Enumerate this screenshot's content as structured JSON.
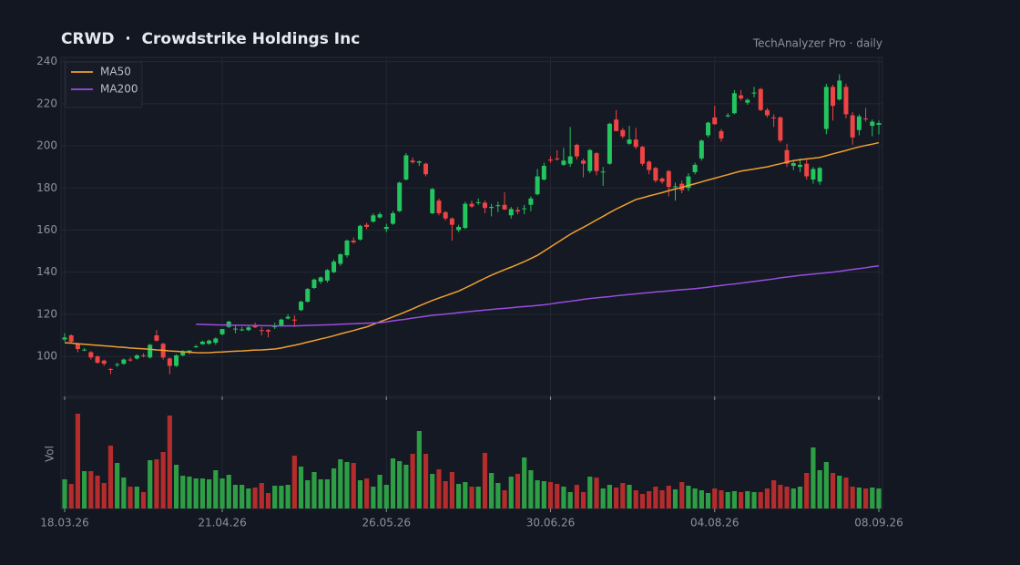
{
  "chart_data": {
    "type": "candlestick",
    "title": "CRWD  ·  Crowdstrike Holdings Inc",
    "subtitle": "TechAnalyzer Pro · daily",
    "volume_label": "Vol",
    "x": [
      "18.03.26",
      "19.03.26",
      "20.03.26",
      "23.03.26",
      "24.03.26",
      "25.03.26",
      "26.03.26",
      "27.03.26",
      "30.03.26",
      "31.03.26",
      "01.04.26",
      "02.04.26",
      "03.04.26",
      "06.04.26",
      "07.04.26",
      "08.04.26",
      "09.04.26",
      "10.04.26",
      "13.04.26",
      "14.04.26",
      "15.04.26",
      "16.04.26",
      "17.04.26",
      "20.04.26",
      "21.04.26",
      "22.04.26",
      "23.04.26",
      "24.04.26",
      "27.04.26",
      "28.04.26",
      "29.04.26",
      "30.04.26",
      "01.05.26",
      "04.05.26",
      "05.05.26",
      "06.05.26",
      "07.05.26",
      "08.05.26",
      "11.05.26",
      "12.05.26",
      "13.05.26",
      "14.05.26",
      "15.05.26",
      "18.05.26",
      "19.05.26",
      "20.05.26",
      "21.05.26",
      "22.05.26",
      "25.05.26",
      "26.05.26",
      "27.05.26",
      "28.05.26",
      "29.05.26",
      "01.06.26",
      "02.06.26",
      "03.06.26",
      "04.06.26",
      "05.06.26",
      "08.06.26",
      "09.06.26",
      "10.06.26",
      "11.06.26",
      "12.06.26",
      "15.06.26",
      "16.06.26",
      "17.06.26",
      "18.06.26",
      "19.06.26",
      "22.06.26",
      "23.06.26",
      "24.06.26",
      "25.06.26",
      "26.06.26",
      "29.06.26",
      "30.06.26",
      "01.07.26",
      "02.07.26",
      "03.07.26",
      "06.07.26",
      "07.07.26",
      "08.07.26",
      "09.07.26",
      "10.07.26",
      "13.07.26",
      "14.07.26",
      "15.07.26",
      "16.07.26",
      "17.07.26",
      "20.07.26",
      "21.07.26",
      "22.07.26",
      "23.07.26",
      "24.07.26",
      "27.07.26",
      "28.07.26",
      "29.07.26",
      "30.07.26",
      "31.07.26",
      "03.08.26",
      "04.08.26",
      "05.08.26",
      "06.08.26",
      "07.08.26",
      "10.08.26",
      "11.08.26",
      "12.08.26",
      "13.08.26",
      "14.08.26",
      "17.08.26",
      "18.08.26",
      "19.08.26",
      "20.08.26",
      "21.08.26",
      "24.08.26",
      "25.08.26",
      "26.08.26",
      "27.08.26",
      "28.08.26",
      "31.08.26",
      "01.09.26",
      "02.09.26",
      "03.09.26",
      "04.09.26",
      "07.09.26",
      "08.09.26"
    ],
    "open": [
      108,
      110,
      106,
      103,
      102,
      100,
      98,
      94,
      96,
      96.5,
      98.5,
      99,
      100.5,
      99.5,
      110,
      106,
      99,
      95.5,
      100.5,
      102,
      104.5,
      105.8,
      106,
      106.5,
      110.5,
      114,
      113,
      112.5,
      112.5,
      114.5,
      112.5,
      112.5,
      114,
      114.5,
      118,
      117.5,
      122,
      126,
      132.5,
      135.5,
      136,
      140,
      144,
      148,
      155,
      155.5,
      162.5,
      164,
      166,
      160.5,
      163,
      169,
      184,
      193,
      192,
      191.5,
      168,
      174,
      168.5,
      165.5,
      160,
      161,
      172.5,
      173,
      173,
      170.5,
      171.5,
      172,
      167,
      169.5,
      170,
      172,
      177,
      184,
      193.5,
      194,
      191,
      191.5,
      200.5,
      193,
      188,
      196.5,
      187.5,
      191.5,
      212.5,
      207.5,
      201,
      203,
      199.5,
      192.5,
      189.5,
      184.5,
      188,
      180.5,
      182,
      180,
      187.5,
      194,
      205,
      213.5,
      207,
      214,
      215.5,
      224,
      220.5,
      225,
      227,
      217,
      213.5,
      213.5,
      198,
      190.5,
      190,
      191.5,
      184,
      183,
      208,
      228,
      222,
      228,
      214.5,
      207.5,
      213,
      209.5,
      210
    ],
    "high": [
      111,
      110.5,
      106.5,
      104,
      102.5,
      100.5,
      98.5,
      94.5,
      97,
      99,
      99.5,
      101,
      101.5,
      106,
      112.5,
      106.5,
      99.5,
      101,
      103,
      103,
      105.5,
      107.5,
      108,
      109,
      113,
      117,
      115,
      114,
      115,
      116,
      114,
      113,
      116,
      118,
      120,
      119.5,
      126.5,
      132.5,
      137,
      138,
      141.5,
      146,
      149,
      155.5,
      156.5,
      162.5,
      163.5,
      168,
      168.5,
      163,
      169,
      183,
      196.5,
      194.5,
      193,
      192,
      180,
      175,
      169,
      166,
      162.5,
      173.5,
      174,
      175,
      174,
      172.5,
      173.5,
      178,
      171,
      171,
      172,
      176,
      189,
      192,
      195,
      198,
      199,
      209,
      201,
      194,
      198.5,
      197,
      190,
      211,
      217,
      208.5,
      209.5,
      208.5,
      200,
      193,
      190,
      185,
      188.5,
      182.5,
      183.5,
      187,
      192,
      203,
      211.5,
      219,
      208,
      215.5,
      226.5,
      226.5,
      222.5,
      228,
      227.5,
      218,
      215,
      214,
      201,
      193,
      194,
      194,
      190,
      190,
      229.5,
      229,
      234,
      229.5,
      216,
      215,
      218,
      212.5,
      212
    ],
    "low": [
      107,
      106.5,
      102,
      102.5,
      98.5,
      96.5,
      95.5,
      91.5,
      95,
      96,
      97.5,
      98.5,
      99.5,
      99,
      107,
      98.5,
      91.5,
      95,
      100,
      101,
      104,
      105.5,
      105.5,
      105.5,
      110,
      113.5,
      111,
      112,
      112,
      113.5,
      110,
      109,
      113,
      114,
      117.5,
      114,
      121.5,
      125.5,
      132,
      134.5,
      135,
      139.5,
      143,
      147,
      153.5,
      155,
      160.5,
      163.5,
      165.5,
      159,
      162.5,
      168.5,
      183.5,
      191.5,
      190.5,
      185.5,
      167.5,
      167,
      164.5,
      155,
      159,
      160.5,
      170.5,
      172,
      168,
      166.5,
      168.5,
      169.5,
      165.5,
      167.5,
      167.5,
      169,
      176.5,
      183.5,
      192,
      193,
      190.5,
      190,
      193.5,
      185,
      187,
      186,
      181,
      191,
      207.5,
      203.5,
      200.5,
      198.5,
      190.5,
      186.5,
      182.5,
      182,
      176,
      174,
      177.5,
      178.5,
      186.5,
      193,
      204,
      210,
      202,
      213.5,
      215,
      221.5,
      219.5,
      223,
      216.5,
      213.5,
      209,
      201.5,
      190,
      188.5,
      187.5,
      184,
      182,
      181.5,
      205.5,
      212,
      221.5,
      213,
      200.5,
      205,
      211.5,
      204.5,
      205.5
    ],
    "close": [
      109,
      107,
      103.5,
      103.2,
      99.5,
      97,
      96.5,
      93.8,
      96.3,
      98.5,
      98.2,
      100.5,
      100.2,
      105.5,
      107.5,
      99.5,
      95.5,
      100.5,
      102,
      102.8,
      104.8,
      107,
      107.5,
      108.5,
      113,
      116.5,
      113.2,
      112.8,
      113.8,
      113.8,
      112.2,
      111.8,
      114.3,
      117.5,
      118.8,
      117,
      126,
      132,
      136.5,
      137.5,
      141,
      145,
      148.5,
      155,
      154.2,
      162,
      161.5,
      167,
      167.5,
      161.5,
      168,
      182.5,
      195.5,
      192.2,
      192.6,
      186.5,
      179.5,
      168,
      165.5,
      162.5,
      161.5,
      172.5,
      171.2,
      173.2,
      170.5,
      171,
      171.8,
      169.8,
      170,
      168.8,
      170.3,
      175,
      185.5,
      190.5,
      193,
      193.6,
      193,
      195,
      195,
      191.5,
      198,
      188,
      187.8,
      210.5,
      207,
      204.5,
      203,
      199.5,
      191.5,
      188.5,
      183.5,
      183,
      180.5,
      180.8,
      179,
      185.5,
      191,
      202.5,
      211,
      210.3,
      203.5,
      214.5,
      225,
      222.5,
      221.8,
      225.3,
      217,
      214.5,
      213.2,
      202.5,
      191.5,
      191.8,
      191,
      185.5,
      189,
      189.5,
      228,
      219,
      231,
      215,
      204,
      214,
      212.8,
      211.5,
      210.8
    ],
    "volume": [
      32,
      27,
      104,
      41,
      41,
      36,
      28,
      69,
      50,
      34,
      24,
      24,
      18,
      53,
      54,
      62,
      102,
      48,
      36,
      35,
      33,
      33,
      32,
      42,
      33,
      37,
      26,
      26,
      22,
      23,
      28,
      17,
      25,
      25,
      26,
      58,
      46,
      31,
      40,
      32,
      32,
      44,
      54,
      51,
      50,
      31,
      33,
      24,
      37,
      26,
      55,
      52,
      48,
      60,
      85,
      60,
      38,
      43,
      30,
      40,
      27,
      29,
      24,
      24,
      61,
      39,
      28,
      20,
      35,
      38,
      56,
      42,
      31,
      30,
      29,
      27,
      24,
      18,
      26,
      18,
      35,
      34,
      22,
      26,
      23,
      28,
      26,
      20,
      16,
      19,
      24,
      20,
      25,
      21,
      29,
      25,
      22,
      20,
      17,
      22,
      20,
      18,
      19,
      18,
      19,
      18,
      18,
      22,
      31,
      26,
      24,
      22,
      24,
      39,
      67,
      42,
      51,
      39,
      36,
      34,
      24,
      23,
      22,
      23,
      22
    ],
    "series": [
      {
        "name": "MA50",
        "color": "#f0a030",
        "values": [
          106.5,
          106.3,
          106,
          105.8,
          105.5,
          105.3,
          105,
          104.8,
          104.5,
          104.3,
          104,
          103.8,
          103.6,
          103.4,
          103.1,
          102.9,
          102.6,
          102.4,
          102.2,
          102,
          101.8,
          101.7,
          101.8,
          102,
          102.1,
          102.3,
          102.5,
          102.6,
          102.8,
          103,
          103.1,
          103.3,
          103.5,
          104,
          104.7,
          105.3,
          106,
          106.8,
          107.5,
          108.3,
          109,
          109.8,
          110.7,
          111.5,
          112.3,
          113.2,
          114,
          115.2,
          116.4,
          117.6,
          118.8,
          120,
          121.3,
          122.6,
          124,
          125.3,
          126.6,
          127.7,
          128.8,
          129.9,
          131,
          132.5,
          134,
          135.6,
          137.1,
          138.6,
          139.9,
          141.2,
          142.4,
          143.7,
          145,
          146.5,
          148,
          150,
          152,
          154,
          156,
          158,
          159.7,
          161.3,
          163,
          164.8,
          166.5,
          168.3,
          170,
          171.5,
          173,
          174.5,
          175.3,
          176.2,
          177,
          177.8,
          178.7,
          179.5,
          180.3,
          181.2,
          182,
          182.9,
          183.8,
          184.6,
          185.5,
          186.3,
          187.2,
          188,
          188.5,
          189,
          189.5,
          190,
          190.8,
          191.5,
          192.3,
          193,
          193.4,
          193.8,
          194.1,
          194.5,
          195.3,
          196.2,
          197,
          197.8,
          198.7,
          199.5,
          200.2,
          200.8,
          201.5
        ]
      },
      {
        "name": "MA200",
        "color": "#9b4de0",
        "values": [
          null,
          null,
          null,
          null,
          null,
          null,
          null,
          null,
          null,
          null,
          null,
          null,
          null,
          null,
          null,
          null,
          null,
          null,
          null,
          null,
          115.3,
          115.2,
          115.1,
          115,
          114.9,
          114.9,
          114.8,
          114.8,
          114.7,
          114.7,
          114.6,
          114.6,
          114.5,
          114.5,
          114.5,
          114.5,
          114.6,
          114.7,
          114.8,
          114.9,
          115,
          115.1,
          115.3,
          115.4,
          115.5,
          115.7,
          115.8,
          115.9,
          116,
          116.4,
          116.9,
          117.3,
          117.7,
          118.2,
          118.6,
          119.1,
          119.5,
          119.8,
          120.1,
          120.4,
          120.8,
          121.1,
          121.4,
          121.7,
          122,
          122.3,
          122.6,
          122.8,
          123.1,
          123.4,
          123.7,
          123.9,
          124.2,
          124.5,
          124.9,
          125.4,
          125.8,
          126.2,
          126.6,
          127.1,
          127.5,
          127.8,
          128.1,
          128.4,
          128.8,
          129.1,
          129.4,
          129.7,
          130,
          130.3,
          130.6,
          130.8,
          131.1,
          131.4,
          131.7,
          131.9,
          132.2,
          132.5,
          132.9,
          133.3,
          133.7,
          134.1,
          134.4,
          134.8,
          135.2,
          135.6,
          136,
          136.4,
          136.8,
          137.3,
          137.7,
          138.1,
          138.5,
          138.8,
          139.1,
          139.4,
          139.7,
          140,
          140.4,
          140.9,
          141.3,
          141.7,
          142.1,
          142.6,
          143
        ]
      }
    ],
    "up_color": "#22c55e",
    "down_color": "#ef4444",
    "volume_up_color": "#2e9e45",
    "volume_down_color": "#b42c2c",
    "ylim": [
      81,
      242
    ],
    "yticks": [
      100,
      120,
      140,
      160,
      180,
      200,
      220,
      240
    ],
    "xticks": [
      "18.03.26",
      "21.04.26",
      "26.05.26",
      "30.06.26",
      "04.08.26",
      "08.09.26"
    ],
    "vlim": [
      0,
      121
    ],
    "grid": true,
    "legend": "upper left"
  }
}
